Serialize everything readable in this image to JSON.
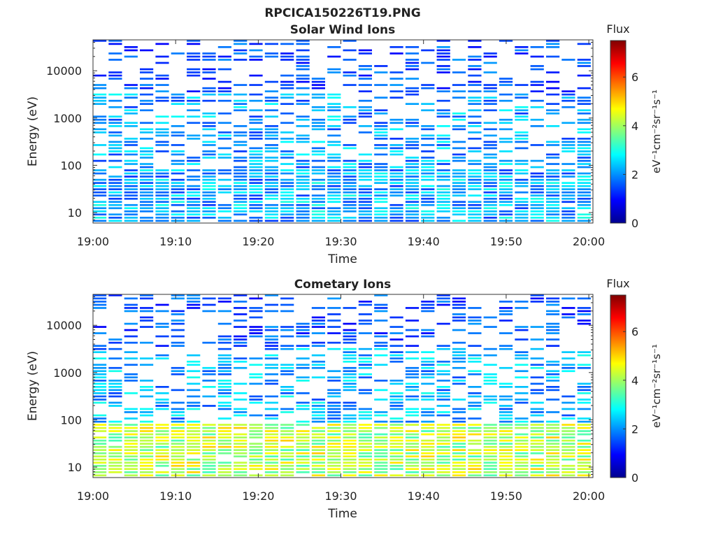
{
  "figure_title": "RPCICA150226T19.PNG",
  "chart_data": [
    {
      "type": "heatmap",
      "title": "Solar Wind Ions",
      "xlabel": "Time",
      "ylabel": "Energy (eV)",
      "x_ticks": [
        "19:00",
        "19:10",
        "19:20",
        "19:30",
        "19:40",
        "19:50",
        "20:00"
      ],
      "x_range_minutes": [
        0,
        60.5
      ],
      "y_scale": "log",
      "y_range": [
        6,
        45000
      ],
      "y_ticks": [
        {
          "value": 10,
          "label": "10"
        },
        {
          "value": 100,
          "label": "100"
        },
        {
          "value": 1000,
          "label": "1000"
        },
        {
          "value": 10000,
          "label": "10000"
        }
      ],
      "colorbar": {
        "label": "Flux",
        "unit_label": "eV⁻¹cm⁻²sr⁻¹s⁻¹",
        "range": [
          0,
          7.5
        ],
        "ticks": [
          0,
          2,
          4,
          6
        ],
        "colormap": "jet"
      },
      "profile": {
        "base_low": 2.0,
        "base_mid": 2.1,
        "base_high": 1.5,
        "density_mid": 0.55,
        "density_high": 0.35
      },
      "grid": false
    },
    {
      "type": "heatmap",
      "title": "Cometary Ions",
      "xlabel": "Time",
      "ylabel": "Energy (eV)",
      "x_ticks": [
        "19:00",
        "19:10",
        "19:20",
        "19:30",
        "19:40",
        "19:50",
        "20:00"
      ],
      "x_range_minutes": [
        0,
        60.5
      ],
      "y_scale": "log",
      "y_range": [
        6,
        45000
      ],
      "y_ticks": [
        {
          "value": 10,
          "label": "10"
        },
        {
          "value": 100,
          "label": "100"
        },
        {
          "value": 1000,
          "label": "1000"
        },
        {
          "value": 10000,
          "label": "10000"
        }
      ],
      "colorbar": {
        "label": "Flux",
        "unit_label": "eV⁻¹cm⁻²sr⁻¹s⁻¹",
        "range": [
          0,
          7.5
        ],
        "ticks": [
          0,
          2,
          4,
          6
        ],
        "colormap": "jet"
      },
      "profile": {
        "base_low": 4.0,
        "base_mid": 2.2,
        "base_high": 1.5,
        "density_mid": 0.5,
        "density_high": 0.4
      },
      "grid": false
    }
  ]
}
